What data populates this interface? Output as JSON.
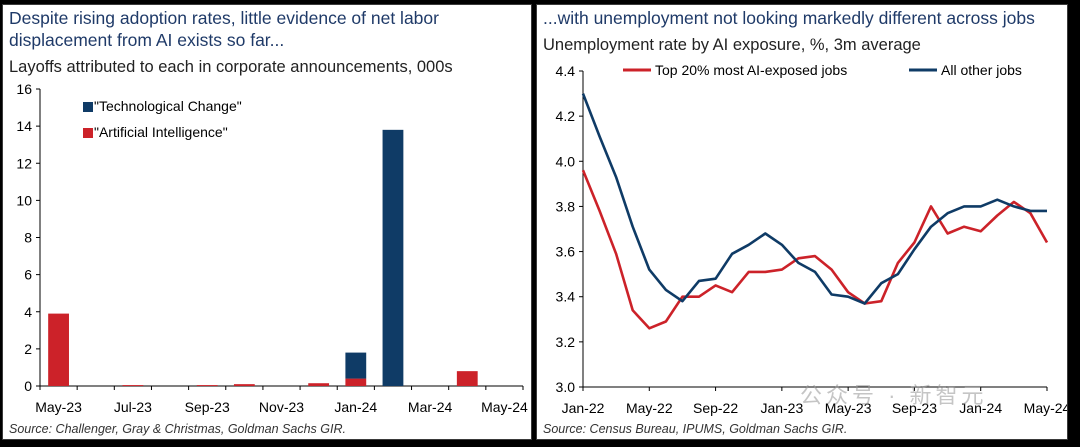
{
  "colors": {
    "navy": "#0f3b66",
    "red": "#cc2229",
    "title": "#1f3a68"
  },
  "chart_data": [
    {
      "type": "bar",
      "stacked": true,
      "headline": "Despite rising adoption rates, little evidence of net labor displacement from AI exists so far...",
      "title": "Layoffs attributed to each in corporate announcements, 000s",
      "source": "Source: Challenger, Gray & Christmas, Goldman Sachs GIR.",
      "categories": [
        "May-23",
        "Jun-23",
        "Jul-23",
        "Aug-23",
        "Sep-23",
        "Oct-23",
        "Nov-23",
        "Dec-23",
        "Jan-24",
        "Feb-24",
        "Mar-24",
        "Apr-24",
        "May-24"
      ],
      "tick_labels": [
        "May-23",
        "Jul-23",
        "Sep-23",
        "Nov-23",
        "Jan-24",
        "Mar-24",
        "May-24"
      ],
      "series": [
        {
          "name": "\"Artificial Intelligence\"",
          "color": "#cc2229",
          "values": [
            3.9,
            0,
            0.05,
            0,
            0.05,
            0.1,
            0,
            0.15,
            0.4,
            0,
            0,
            0.8,
            0
          ]
        },
        {
          "name": "\"Technological Change\"",
          "color": "#0f3b66",
          "values": [
            0,
            0,
            0,
            0,
            0,
            0,
            0,
            0,
            1.4,
            13.8,
            0,
            0,
            0
          ]
        }
      ],
      "legend_order": [
        "\"Technological Change\"",
        "\"Artificial Intelligence\""
      ],
      "legend_position": "top-left",
      "ylim": [
        0,
        16
      ],
      "yticks": [
        0,
        2,
        4,
        6,
        8,
        10,
        12,
        14,
        16
      ],
      "xlabel": "",
      "ylabel": ""
    },
    {
      "type": "line",
      "headline": "...with unemployment not looking markedly different across jobs",
      "title": "Unemployment rate by AI exposure, %, 3m average",
      "source": "Source: Census Bureau, IPUMS, Goldman Sachs GIR.",
      "x": [
        "Jan-22",
        "Feb-22",
        "Mar-22",
        "Apr-22",
        "May-22",
        "Jun-22",
        "Jul-22",
        "Aug-22",
        "Sep-22",
        "Oct-22",
        "Nov-22",
        "Dec-22",
        "Jan-23",
        "Feb-23",
        "Mar-23",
        "Apr-23",
        "May-23",
        "Jun-23",
        "Jul-23",
        "Aug-23",
        "Sep-23",
        "Oct-23",
        "Nov-23",
        "Dec-23",
        "Jan-24",
        "Feb-24",
        "Mar-24",
        "Apr-24",
        "May-24"
      ],
      "tick_labels": [
        "Jan-22",
        "May-22",
        "Sep-22",
        "Jan-23",
        "May-23",
        "Sep-23",
        "Jan-24",
        "May-24"
      ],
      "series": [
        {
          "name": "Top 20% most AI-exposed jobs",
          "color": "#cc2229",
          "values": [
            3.96,
            3.78,
            3.59,
            3.34,
            3.26,
            3.29,
            3.4,
            3.4,
            3.45,
            3.42,
            3.51,
            3.51,
            3.52,
            3.57,
            3.58,
            3.52,
            3.42,
            3.37,
            3.38,
            3.55,
            3.64,
            3.8,
            3.68,
            3.71,
            3.69,
            3.76,
            3.82,
            3.77,
            3.64
          ]
        },
        {
          "name": "All other jobs",
          "color": "#0f3b66",
          "values": [
            4.3,
            4.11,
            3.93,
            3.71,
            3.52,
            3.43,
            3.38,
            3.47,
            3.48,
            3.59,
            3.63,
            3.68,
            3.63,
            3.55,
            3.51,
            3.41,
            3.4,
            3.37,
            3.46,
            3.5,
            3.61,
            3.71,
            3.77,
            3.8,
            3.8,
            3.83,
            3.8,
            3.78,
            3.78
          ]
        }
      ],
      "legend_position": "top",
      "ylim": [
        3.0,
        4.4
      ],
      "yticks": [
        "3.0",
        "3.2",
        "3.4",
        "3.6",
        "3.8",
        "4.0",
        "4.2",
        "4.4"
      ],
      "xlabel": "",
      "ylabel": ""
    }
  ],
  "watermark": "公众号 · 新智元"
}
